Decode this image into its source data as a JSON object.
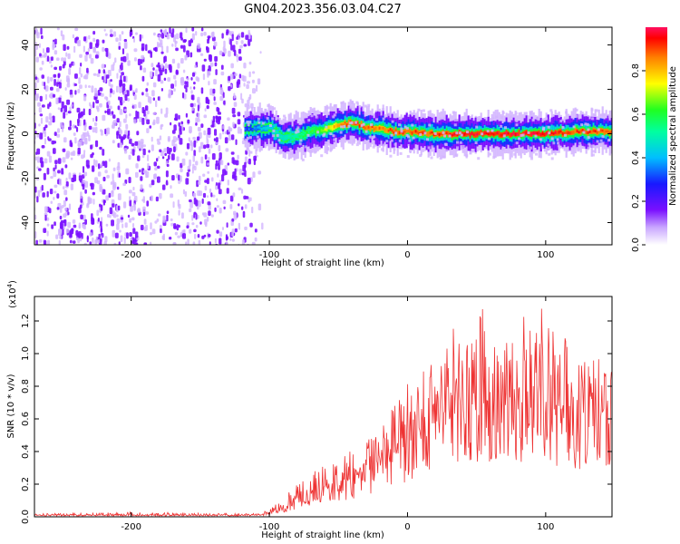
{
  "title": "GN04.2023.356.03.04.C27",
  "chart_data": [
    {
      "type": "heatmap",
      "xlabel": "Height of straight line (km)",
      "ylabel": "Frequency (Hz)",
      "xlim": [
        -270,
        148
      ],
      "ylim": [
        -50,
        48
      ],
      "xticks": [
        -200,
        -100,
        0,
        100
      ],
      "yticks": [
        40,
        20,
        0,
        -20,
        -40
      ],
      "grid": false,
      "colorbar": {
        "label": "Normalized spectral amplitude",
        "range": [
          0,
          1
        ],
        "ticks": [
          "0.0",
          "0.2",
          "0.4",
          "0.6",
          "0.8"
        ]
      },
      "series": [
        {
          "description_key": "noise_region",
          "x_range": [
            -270,
            -118
          ],
          "freq_range": [
            -50,
            48
          ],
          "amplitude": 0.15
        },
        {
          "description_key": "signal_band",
          "x": [
            -118,
            -100,
            -90,
            -80,
            -70,
            -60,
            -50,
            -40,
            -30,
            -20,
            -10,
            0,
            20,
            40,
            60,
            80,
            100,
            120,
            148
          ],
          "center_freq": [
            2,
            3,
            -2,
            -1,
            1,
            2,
            4,
            5,
            3,
            2,
            1,
            1,
            0,
            0,
            0,
            0,
            0,
            1,
            1
          ],
          "peak_amplitude": [
            0.3,
            0.45,
            0.5,
            0.55,
            0.6,
            0.7,
            0.85,
            0.9,
            0.9,
            0.85,
            0.9,
            0.9,
            0.9,
            0.95,
            0.95,
            0.95,
            0.95,
            0.9,
            0.9
          ]
        }
      ]
    },
    {
      "type": "line",
      "xlabel": "Height of straight line (km)",
      "ylabel": "SNR (10 * v/v)",
      "yscale_label": "(x10",
      "yscale_exp": "4",
      "xlim": [
        -270,
        148
      ],
      "ylim": [
        0,
        1.35
      ],
      "xticks": [
        -200,
        -100,
        0,
        100
      ],
      "yticks": [
        0.0,
        0.2,
        0.4,
        0.6,
        0.8,
        1.0,
        1.2
      ],
      "color": "#ee3333",
      "series": [
        {
          "x": [
            -270,
            -200,
            -120,
            -105,
            -100,
            -90,
            -80,
            -70,
            -60,
            -50,
            -40,
            -30,
            -20,
            -10,
            0,
            10,
            20,
            30,
            40,
            50,
            60,
            70,
            80,
            90,
            100,
            110,
            120,
            130,
            140,
            148
          ],
          "mean": [
            0.01,
            0.01,
            0.01,
            0.015,
            0.025,
            0.06,
            0.1,
            0.14,
            0.19,
            0.21,
            0.24,
            0.29,
            0.36,
            0.43,
            0.47,
            0.58,
            0.68,
            0.73,
            0.74,
            0.73,
            0.72,
            0.7,
            0.72,
            0.73,
            0.7,
            0.68,
            0.66,
            0.63,
            0.65,
            0.65
          ],
          "peak": [
            0.02,
            0.03,
            0.02,
            0.03,
            0.05,
            0.14,
            0.2,
            0.26,
            0.33,
            0.36,
            0.43,
            0.47,
            0.51,
            0.7,
            0.83,
            0.95,
            1.08,
            1.15,
            1.18,
            1.34,
            1.19,
            1.1,
            1.2,
            1.35,
            1.26,
            1.2,
            1.2,
            1.02,
            0.96,
            0.9
          ]
        }
      ]
    }
  ]
}
